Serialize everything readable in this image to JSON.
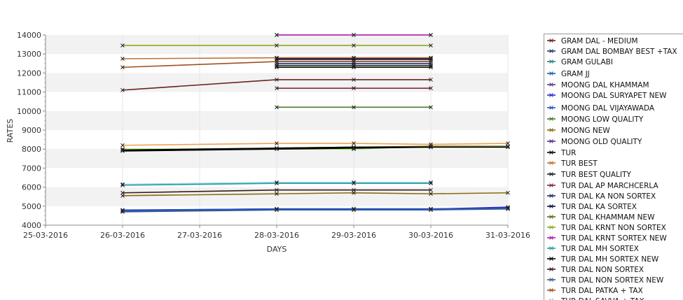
{
  "chart_data": {
    "type": "line",
    "title": "",
    "xlabel": "DAYS",
    "ylabel": "RATES",
    "x_ticks": [
      "25-03-2016",
      "26-03-2016",
      "27-03-2016",
      "28-03-2016",
      "29-03-2016",
      "30-03-2016",
      "31-03-2016"
    ],
    "ylim": [
      4000,
      14000
    ],
    "y_ticks": [
      4000,
      5000,
      6000,
      7000,
      8000,
      9000,
      10000,
      11000,
      12000,
      13000,
      14000
    ],
    "grid": true,
    "legend_position": "right",
    "series": [
      {
        "name": "GRAM DAL - MEDIUM",
        "color": "#6b1f1f",
        "points": [
          [
            "26-03-2016",
            11100
          ],
          [
            "28-03-2016",
            11650
          ],
          [
            "29-03-2016",
            11650
          ],
          [
            "30-03-2016",
            11650
          ]
        ]
      },
      {
        "name": "GRAM DAL BOMBAY BEST +TAX",
        "color": "#1f3a6b",
        "points": [
          [
            "28-03-2016",
            12500
          ],
          [
            "29-03-2016",
            12500
          ],
          [
            "30-03-2016",
            12500
          ]
        ]
      },
      {
        "name": "GRAM GULABI",
        "color": "#2a7f7f",
        "points": [
          [
            "28-03-2016",
            12600
          ],
          [
            "29-03-2016",
            12600
          ],
          [
            "30-03-2016",
            12600
          ]
        ]
      },
      {
        "name": "GRAM JJ",
        "color": "#1f5fa8",
        "points": [
          [
            "26-03-2016",
            4750
          ],
          [
            "28-03-2016",
            4820
          ],
          [
            "29-03-2016",
            4820
          ],
          [
            "30-03-2016",
            4820
          ],
          [
            "31-03-2016",
            4900
          ]
        ]
      },
      {
        "name": "MOONG DAL KHAMMAM",
        "color": "#5a3a8a",
        "points": [
          [
            "28-03-2016",
            12700
          ],
          [
            "29-03-2016",
            12700
          ],
          [
            "30-03-2016",
            12700
          ]
        ]
      },
      {
        "name": "MOONG DAL SURYAPET NEW",
        "color": "#2a2acc",
        "points": [
          [
            "26-03-2016",
            4800
          ],
          [
            "28-03-2016",
            4850
          ],
          [
            "29-03-2016",
            4850
          ],
          [
            "30-03-2016",
            4850
          ],
          [
            "31-03-2016",
            4950
          ]
        ]
      },
      {
        "name": "MOONG DAL VIJAYAWADA",
        "color": "#2255cc",
        "points": [
          [
            "26-03-2016",
            4780
          ],
          [
            "28-03-2016",
            4860
          ],
          [
            "29-03-2016",
            4860
          ],
          [
            "30-03-2016",
            4860
          ],
          [
            "31-03-2016",
            4880
          ]
        ]
      },
      {
        "name": "MOONG LOW QUALITY",
        "color": "#4a7a2a",
        "points": [
          [
            "28-03-2016",
            10200
          ],
          [
            "29-03-2016",
            10200
          ],
          [
            "30-03-2016",
            10200
          ]
        ]
      },
      {
        "name": "MOONG NEW",
        "color": "#8a6a10",
        "points": [
          [
            "26-03-2016",
            5550
          ],
          [
            "28-03-2016",
            5650
          ],
          [
            "29-03-2016",
            5700
          ],
          [
            "30-03-2016",
            5650
          ],
          [
            "31-03-2016",
            5700
          ]
        ]
      },
      {
        "name": "MOONG OLD QUALITY",
        "color": "#5a2a8a",
        "points": [
          [
            "28-03-2016",
            12800
          ],
          [
            "29-03-2016",
            12800
          ],
          [
            "30-03-2016",
            12800
          ]
        ]
      },
      {
        "name": "TUR",
        "color": "#000000",
        "points": [
          [
            "26-03-2016",
            7900
          ],
          [
            "28-03-2016",
            8000
          ],
          [
            "29-03-2016",
            8050
          ],
          [
            "30-03-2016",
            8100
          ],
          [
            "31-03-2016",
            8100
          ]
        ]
      },
      {
        "name": "TUR BEST",
        "color": "#c07030",
        "points": [
          [
            "26-03-2016",
            12750
          ],
          [
            "28-03-2016",
            12800
          ],
          [
            "29-03-2016",
            12800
          ],
          [
            "30-03-2016",
            12800
          ]
        ]
      },
      {
        "name": "TUR BEST QUALITY",
        "color": "#1a1a1a",
        "points": [
          [
            "28-03-2016",
            12750
          ],
          [
            "29-03-2016",
            12750
          ],
          [
            "30-03-2016",
            12750
          ]
        ]
      },
      {
        "name": "TUR DAL AP MARCHCERLA",
        "color": "#7a2a4a",
        "points": [
          [
            "28-03-2016",
            11200
          ],
          [
            "29-03-2016",
            11200
          ],
          [
            "30-03-2016",
            11200
          ]
        ]
      },
      {
        "name": "TUR DAL KA NON SORTEX",
        "color": "#1a2a6a",
        "points": [
          [
            "28-03-2016",
            12400
          ],
          [
            "29-03-2016",
            12400
          ],
          [
            "30-03-2016",
            12400
          ]
        ]
      },
      {
        "name": "TUR DAL KA SORTEX",
        "color": "#0a0a3a",
        "points": [
          [
            "28-03-2016",
            12300
          ],
          [
            "29-03-2016",
            12300
          ],
          [
            "30-03-2016",
            12300
          ]
        ]
      },
      {
        "name": "TUR DAL KHAMMAM NEW",
        "color": "#5a6a10",
        "points": [
          [
            "26-03-2016",
            7950
          ],
          [
            "28-03-2016",
            8050
          ],
          [
            "29-03-2016",
            8100
          ],
          [
            "30-03-2016",
            8150
          ],
          [
            "31-03-2016",
            8150
          ]
        ]
      },
      {
        "name": "TUR DAL KRNT NON SORTEX",
        "color": "#8aaa20",
        "points": [
          [
            "26-03-2016",
            13450
          ],
          [
            "28-03-2016",
            13450
          ],
          [
            "29-03-2016",
            13450
          ],
          [
            "30-03-2016",
            13450
          ]
        ]
      },
      {
        "name": "TUR DAL KRNT SORTEX NEW",
        "color": "#aa20aa",
        "points": [
          [
            "28-03-2016",
            14000
          ],
          [
            "29-03-2016",
            14000
          ],
          [
            "30-03-2016",
            14000
          ]
        ]
      },
      {
        "name": "TUR DAL MH SORTEX",
        "color": "#20a0a0",
        "points": [
          [
            "26-03-2016",
            6100
          ],
          [
            "28-03-2016",
            6200
          ],
          [
            "29-03-2016",
            6200
          ],
          [
            "30-03-2016",
            6200
          ]
        ]
      },
      {
        "name": "TUR DAL MH SORTEX NEW",
        "color": "#000000",
        "points": [
          [
            "26-03-2016",
            7950
          ],
          [
            "28-03-2016",
            8050
          ],
          [
            "29-03-2016",
            8100
          ],
          [
            "30-03-2016",
            8100
          ]
        ]
      },
      {
        "name": "TUR DAL NON SORTEX",
        "color": "#3a1a1a",
        "points": [
          [
            "26-03-2016",
            5700
          ],
          [
            "28-03-2016",
            5850
          ],
          [
            "29-03-2016",
            5850
          ],
          [
            "30-03-2016",
            5850
          ]
        ]
      },
      {
        "name": "TUR DAL NON SORTEX NEW",
        "color": "#3a5a8a",
        "points": [
          [
            "26-03-2016",
            4700
          ],
          [
            "28-03-2016",
            4800
          ],
          [
            "29-03-2016",
            4800
          ],
          [
            "30-03-2016",
            4800
          ],
          [
            "31-03-2016",
            4850
          ]
        ]
      },
      {
        "name": "TUR DAL PATKA + TAX",
        "color": "#a05020",
        "points": [
          [
            "26-03-2016",
            12300
          ],
          [
            "28-03-2016",
            12600
          ],
          [
            "29-03-2016",
            12600
          ],
          [
            "30-03-2016",
            12600
          ]
        ]
      },
      {
        "name": "TUR DAL SAVVA + TAX",
        "color": "#60a0d0",
        "points": []
      }
    ],
    "extra_series": [
      {
        "color": "#f0a050",
        "points": [
          [
            "26-03-2016",
            8200
          ],
          [
            "28-03-2016",
            8300
          ],
          [
            "29-03-2016",
            8300
          ],
          [
            "30-03-2016",
            8250
          ],
          [
            "31-03-2016",
            8300
          ]
        ]
      },
      {
        "color": "#e080e0",
        "points": [
          [
            "28-03-2016",
            14000
          ],
          [
            "29-03-2016",
            14000
          ],
          [
            "30-03-2016",
            14000
          ]
        ]
      },
      {
        "color": "#a0d0f0",
        "points": [
          [
            "26-03-2016",
            6150
          ],
          [
            "28-03-2016",
            6250
          ],
          [
            "29-03-2016",
            6250
          ],
          [
            "30-03-2016",
            6250
          ]
        ]
      },
      {
        "color": "#d0e020",
        "points": [
          [
            "28-03-2016",
            12350
          ],
          [
            "29-03-2016",
            12350
          ],
          [
            "30-03-2016",
            12350
          ]
        ]
      },
      {
        "color": "#a0e060",
        "points": [
          [
            "26-03-2016",
            8000
          ],
          [
            "29-03-2016",
            8000
          ],
          [
            "30-03-2016",
            8150
          ]
        ]
      }
    ]
  }
}
